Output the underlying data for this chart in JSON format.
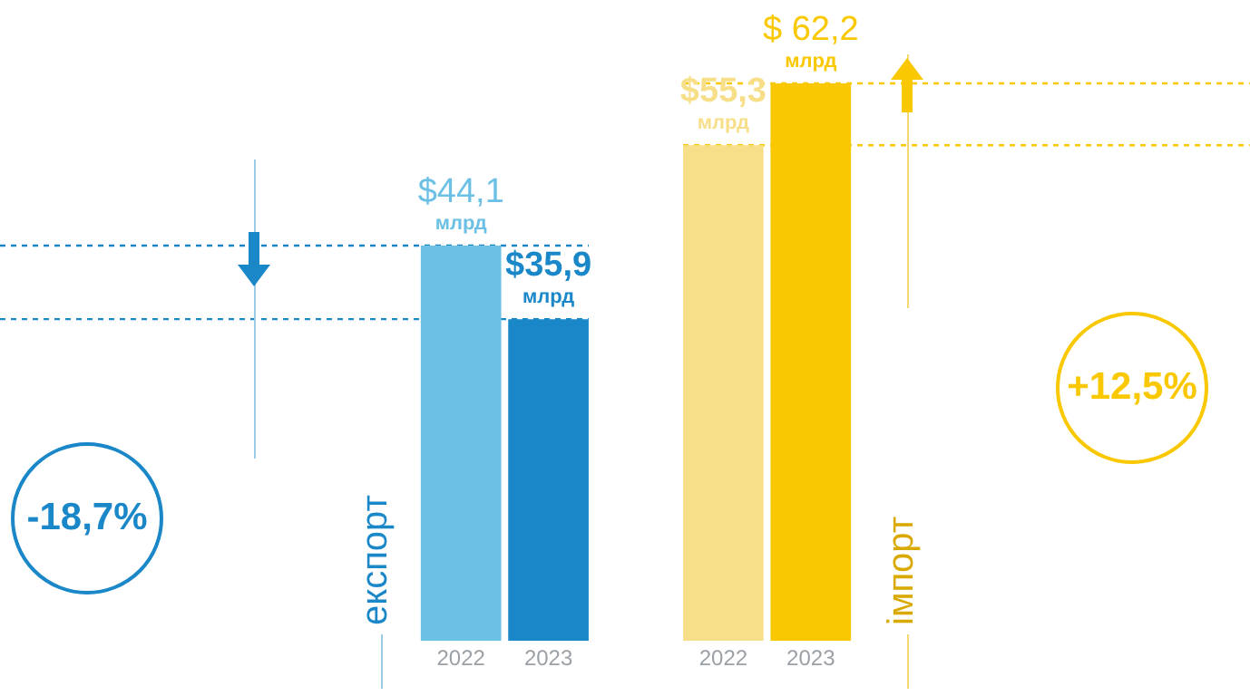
{
  "chart_data": {
    "type": "bar",
    "categories": [
      "2022",
      "2023",
      null,
      "2022",
      "2023"
    ],
    "values": [
      44.1,
      35.9,
      null,
      55.3,
      62.2
    ],
    "colors": [
      "#6cc0e5",
      "#1a87c9",
      null,
      "#f7df8a",
      "#f9c800"
    ],
    "value_labels": [
      "$44,1 млрд",
      "$35,9 млрд",
      null,
      "$55,3 млрд",
      "$ 62,2 млрд"
    ],
    "ref_lines": [
      {
        "axis": "y",
        "value": 44.1,
        "color": "#1a87c9",
        "line_style": "dashed"
      },
      {
        "axis": "y",
        "value": 35.9,
        "color": "#1a87c9",
        "line_style": "dashed"
      },
      {
        "axis": "y",
        "value": 62.2,
        "color": "#f9c800",
        "line_style": "dashed"
      },
      {
        "axis": "y",
        "value": 55.3,
        "color": "#f9c800",
        "line_style": "dashed"
      }
    ],
    "annotations": [
      "експорт",
      "імпорт",
      "-18,7%",
      "+12,5%"
    ],
    "grid": false,
    "legend": false,
    "tick_labels": "x"
  }
}
